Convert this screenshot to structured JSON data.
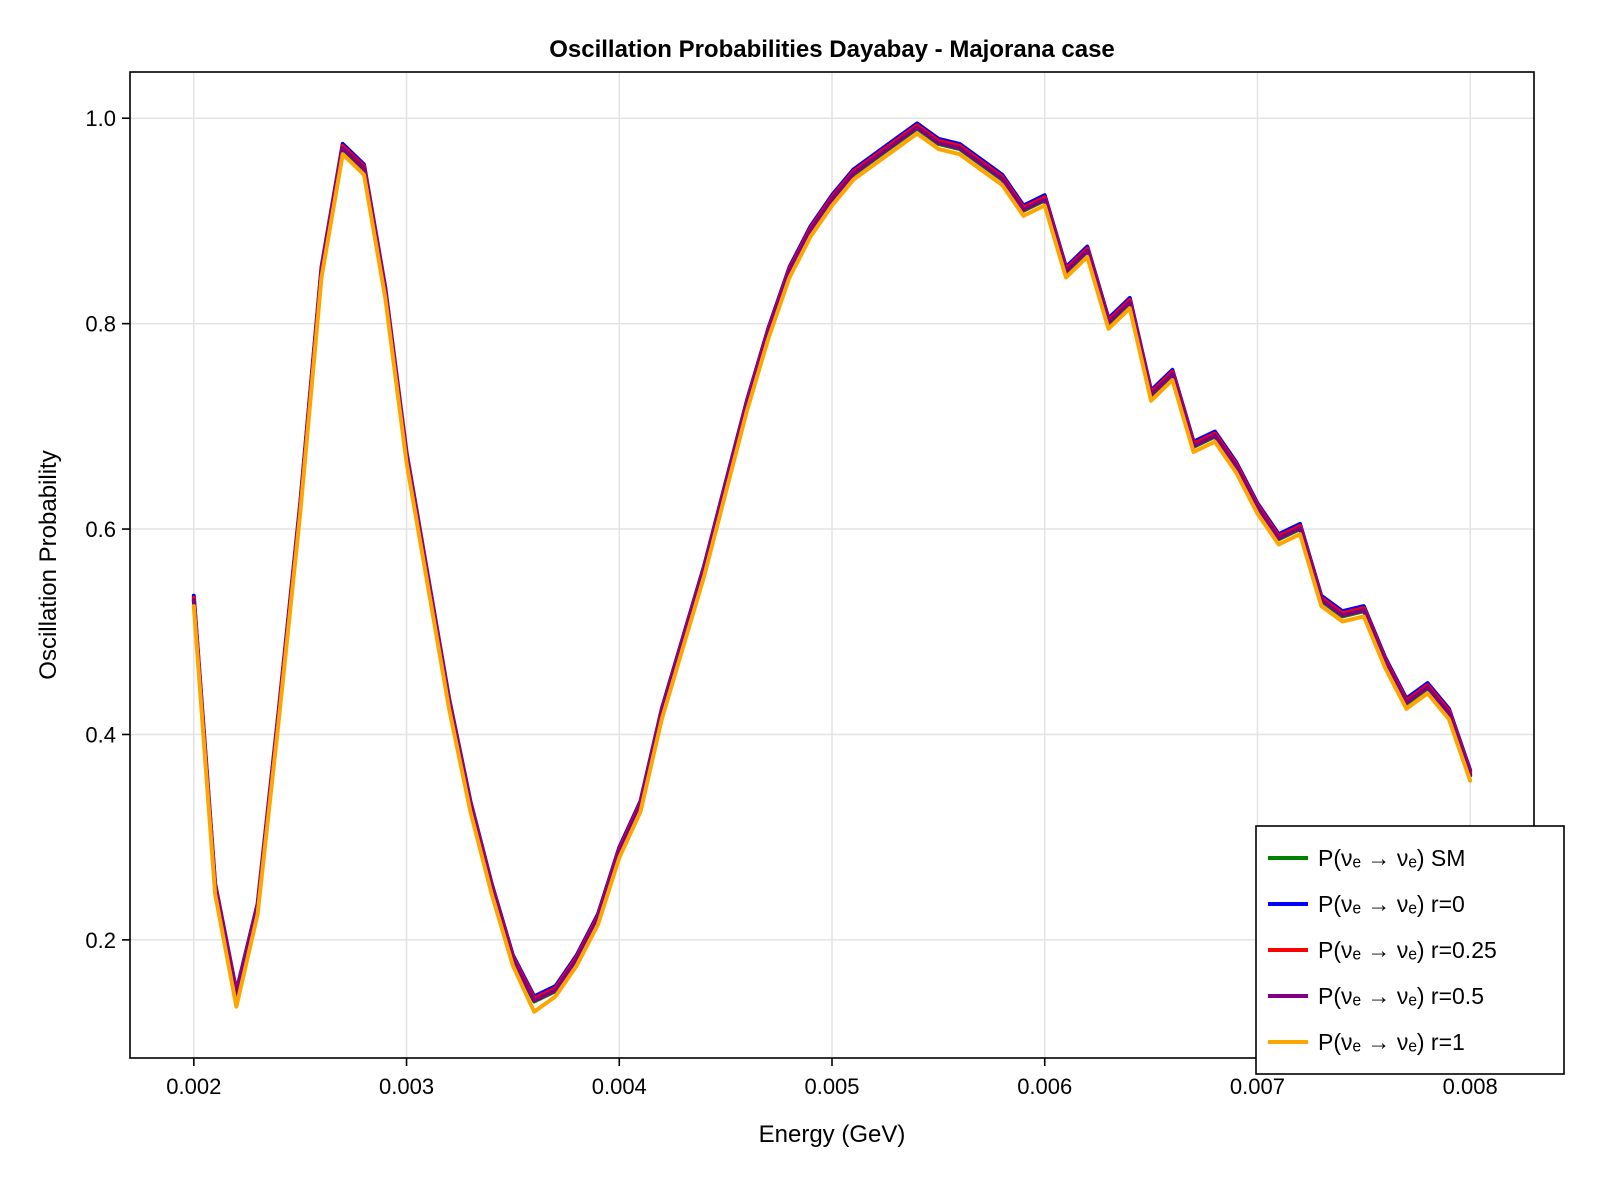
{
  "chart_data": {
    "type": "line",
    "title": "Oscillation Probabilities Dayabay - Majorana case",
    "xlabel": "Energy (GeV)",
    "ylabel": "Oscillation Probability",
    "xlim": [
      0.0017,
      0.0083
    ],
    "ylim": [
      0.085,
      1.045
    ],
    "xticks": [
      0.002,
      0.003,
      0.004,
      0.005,
      0.006,
      0.007,
      0.008
    ],
    "xtick_labels": [
      "0.002",
      "0.003",
      "0.004",
      "0.005",
      "0.006",
      "0.007",
      "0.008"
    ],
    "yticks": [
      0.2,
      0.4,
      0.6,
      0.8,
      1.0
    ],
    "ytick_labels": [
      "0.2",
      "0.4",
      "0.6",
      "0.8",
      "1.0"
    ],
    "grid": true,
    "legend_position": "bottom-right",
    "x_range_plotted": [
      0.002,
      0.008
    ],
    "series": [
      {
        "name": "P(νₑ → νₑ) SM",
        "color": "#008000",
        "x": [
          0.002,
          0.0021,
          0.0022,
          0.0023,
          0.0024,
          0.0025,
          0.0026,
          0.0027,
          0.0028,
          0.0029,
          0.003,
          0.0031,
          0.0032,
          0.0033,
          0.0034,
          0.0035,
          0.0036,
          0.0037,
          0.0038,
          0.0039,
          0.004,
          0.0041,
          0.0042,
          0.0043,
          0.0044,
          0.0045,
          0.0046,
          0.0047,
          0.0048,
          0.0049,
          0.005,
          0.0051,
          0.0052,
          0.0053,
          0.0054,
          0.0055,
          0.0056,
          0.0057,
          0.0058,
          0.0059,
          0.006,
          0.0061,
          0.0062,
          0.0063,
          0.0064,
          0.0065,
          0.0066,
          0.0067,
          0.0068,
          0.0069,
          0.007,
          0.0071,
          0.0072,
          0.0073,
          0.0074,
          0.0075,
          0.0076,
          0.0077,
          0.0078,
          0.0079,
          0.008
        ],
        "values": [
          0.53,
          0.25,
          0.145,
          0.23,
          0.42,
          0.62,
          0.85,
          0.97,
          0.95,
          0.83,
          0.67,
          0.55,
          0.43,
          0.33,
          0.25,
          0.18,
          0.14,
          0.15,
          0.18,
          0.22,
          0.285,
          0.33,
          0.42,
          0.49,
          0.56,
          0.64,
          0.72,
          0.79,
          0.85,
          0.89,
          0.92,
          0.945,
          0.96,
          0.975,
          0.99,
          0.975,
          0.97,
          0.955,
          0.94,
          0.91,
          0.92,
          0.85,
          0.87,
          0.8,
          0.82,
          0.73,
          0.75,
          0.68,
          0.69,
          0.66,
          0.62,
          0.59,
          0.6,
          0.53,
          0.515,
          0.52,
          0.47,
          0.43,
          0.445,
          0.42,
          0.36
        ]
      },
      {
        "name": "P(νₑ → νₑ) r=0",
        "color": "#0000ff",
        "x": [
          0.002,
          0.0021,
          0.0022,
          0.0023,
          0.0024,
          0.0025,
          0.0026,
          0.0027,
          0.0028,
          0.0029,
          0.003,
          0.0031,
          0.0032,
          0.0033,
          0.0034,
          0.0035,
          0.0036,
          0.0037,
          0.0038,
          0.0039,
          0.004,
          0.0041,
          0.0042,
          0.0043,
          0.0044,
          0.0045,
          0.0046,
          0.0047,
          0.0048,
          0.0049,
          0.005,
          0.0051,
          0.0052,
          0.0053,
          0.0054,
          0.0055,
          0.0056,
          0.0057,
          0.0058,
          0.0059,
          0.006,
          0.0061,
          0.0062,
          0.0063,
          0.0064,
          0.0065,
          0.0066,
          0.0067,
          0.0068,
          0.0069,
          0.007,
          0.0071,
          0.0072,
          0.0073,
          0.0074,
          0.0075,
          0.0076,
          0.0077,
          0.0078,
          0.0079,
          0.008
        ],
        "values": [
          0.535,
          0.255,
          0.15,
          0.235,
          0.425,
          0.625,
          0.855,
          0.975,
          0.955,
          0.835,
          0.675,
          0.555,
          0.435,
          0.335,
          0.255,
          0.185,
          0.145,
          0.155,
          0.185,
          0.225,
          0.29,
          0.335,
          0.425,
          0.495,
          0.565,
          0.645,
          0.725,
          0.795,
          0.855,
          0.895,
          0.925,
          0.95,
          0.965,
          0.98,
          0.995,
          0.98,
          0.975,
          0.96,
          0.945,
          0.915,
          0.925,
          0.855,
          0.875,
          0.805,
          0.825,
          0.735,
          0.755,
          0.685,
          0.695,
          0.665,
          0.625,
          0.595,
          0.605,
          0.535,
          0.52,
          0.525,
          0.475,
          0.435,
          0.45,
          0.425,
          0.365
        ]
      },
      {
        "name": "P(νₑ →  νₑ) r=0.25",
        "color": "#ff0000",
        "x": [
          0.002,
          0.0021,
          0.0022,
          0.0023,
          0.0024,
          0.0025,
          0.0026,
          0.0027,
          0.0028,
          0.0029,
          0.003,
          0.0031,
          0.0032,
          0.0033,
          0.0034,
          0.0035,
          0.0036,
          0.0037,
          0.0038,
          0.0039,
          0.004,
          0.0041,
          0.0042,
          0.0043,
          0.0044,
          0.0045,
          0.0046,
          0.0047,
          0.0048,
          0.0049,
          0.005,
          0.0051,
          0.0052,
          0.0053,
          0.0054,
          0.0055,
          0.0056,
          0.0057,
          0.0058,
          0.0059,
          0.006,
          0.0061,
          0.0062,
          0.0063,
          0.0064,
          0.0065,
          0.0066,
          0.0067,
          0.0068,
          0.0069,
          0.007,
          0.0071,
          0.0072,
          0.0073,
          0.0074,
          0.0075,
          0.0076,
          0.0077,
          0.0078,
          0.0079,
          0.008
        ],
        "values": [
          0.533,
          0.253,
          0.148,
          0.233,
          0.423,
          0.623,
          0.853,
          0.973,
          0.953,
          0.833,
          0.673,
          0.553,
          0.433,
          0.333,
          0.253,
          0.183,
          0.143,
          0.153,
          0.183,
          0.223,
          0.288,
          0.333,
          0.423,
          0.493,
          0.563,
          0.643,
          0.723,
          0.793,
          0.853,
          0.893,
          0.923,
          0.948,
          0.963,
          0.978,
          0.993,
          0.978,
          0.973,
          0.958,
          0.943,
          0.913,
          0.923,
          0.853,
          0.873,
          0.803,
          0.823,
          0.733,
          0.753,
          0.683,
          0.693,
          0.663,
          0.623,
          0.593,
          0.603,
          0.533,
          0.518,
          0.523,
          0.473,
          0.433,
          0.448,
          0.423,
          0.363
        ]
      },
      {
        "name": "P(νₑ →  νₑ) r=0.5",
        "color": "#800080",
        "x": [
          0.002,
          0.0021,
          0.0022,
          0.0023,
          0.0024,
          0.0025,
          0.0026,
          0.0027,
          0.0028,
          0.0029,
          0.003,
          0.0031,
          0.0032,
          0.0033,
          0.0034,
          0.0035,
          0.0036,
          0.0037,
          0.0038,
          0.0039,
          0.004,
          0.0041,
          0.0042,
          0.0043,
          0.0044,
          0.0045,
          0.0046,
          0.0047,
          0.0048,
          0.0049,
          0.005,
          0.0051,
          0.0052,
          0.0053,
          0.0054,
          0.0055,
          0.0056,
          0.0057,
          0.0058,
          0.0059,
          0.006,
          0.0061,
          0.0062,
          0.0063,
          0.0064,
          0.0065,
          0.0066,
          0.0067,
          0.0068,
          0.0069,
          0.007,
          0.0071,
          0.0072,
          0.0073,
          0.0074,
          0.0075,
          0.0076,
          0.0077,
          0.0078,
          0.0079,
          0.008
        ],
        "values": [
          0.531,
          0.251,
          0.146,
          0.231,
          0.421,
          0.621,
          0.851,
          0.971,
          0.951,
          0.831,
          0.671,
          0.551,
          0.431,
          0.331,
          0.251,
          0.181,
          0.141,
          0.151,
          0.181,
          0.221,
          0.286,
          0.331,
          0.421,
          0.491,
          0.561,
          0.641,
          0.721,
          0.791,
          0.851,
          0.891,
          0.921,
          0.946,
          0.961,
          0.976,
          0.991,
          0.976,
          0.971,
          0.956,
          0.941,
          0.911,
          0.921,
          0.851,
          0.871,
          0.801,
          0.821,
          0.731,
          0.751,
          0.681,
          0.691,
          0.661,
          0.621,
          0.591,
          0.601,
          0.531,
          0.516,
          0.521,
          0.471,
          0.431,
          0.446,
          0.421,
          0.361
        ]
      },
      {
        "name": "P(νₑ →  νₑ) r=1",
        "color": "#ffa500",
        "x": [
          0.002,
          0.0021,
          0.0022,
          0.0023,
          0.0024,
          0.0025,
          0.0026,
          0.0027,
          0.0028,
          0.0029,
          0.003,
          0.0031,
          0.0032,
          0.0033,
          0.0034,
          0.0035,
          0.0036,
          0.0037,
          0.0038,
          0.0039,
          0.004,
          0.0041,
          0.0042,
          0.0043,
          0.0044,
          0.0045,
          0.0046,
          0.0047,
          0.0048,
          0.0049,
          0.005,
          0.0051,
          0.0052,
          0.0053,
          0.0054,
          0.0055,
          0.0056,
          0.0057,
          0.0058,
          0.0059,
          0.006,
          0.0061,
          0.0062,
          0.0063,
          0.0064,
          0.0065,
          0.0066,
          0.0067,
          0.0068,
          0.0069,
          0.007,
          0.0071,
          0.0072,
          0.0073,
          0.0074,
          0.0075,
          0.0076,
          0.0077,
          0.0078,
          0.0079,
          0.008
        ],
        "values": [
          0.525,
          0.245,
          0.135,
          0.225,
          0.415,
          0.615,
          0.845,
          0.965,
          0.945,
          0.825,
          0.665,
          0.545,
          0.425,
          0.325,
          0.245,
          0.175,
          0.13,
          0.145,
          0.175,
          0.215,
          0.28,
          0.325,
          0.415,
          0.485,
          0.555,
          0.635,
          0.715,
          0.785,
          0.845,
          0.885,
          0.915,
          0.94,
          0.955,
          0.97,
          0.985,
          0.97,
          0.965,
          0.95,
          0.935,
          0.905,
          0.915,
          0.845,
          0.865,
          0.795,
          0.815,
          0.725,
          0.745,
          0.675,
          0.685,
          0.655,
          0.615,
          0.585,
          0.595,
          0.525,
          0.51,
          0.515,
          0.465,
          0.425,
          0.44,
          0.415,
          0.355
        ]
      }
    ]
  }
}
